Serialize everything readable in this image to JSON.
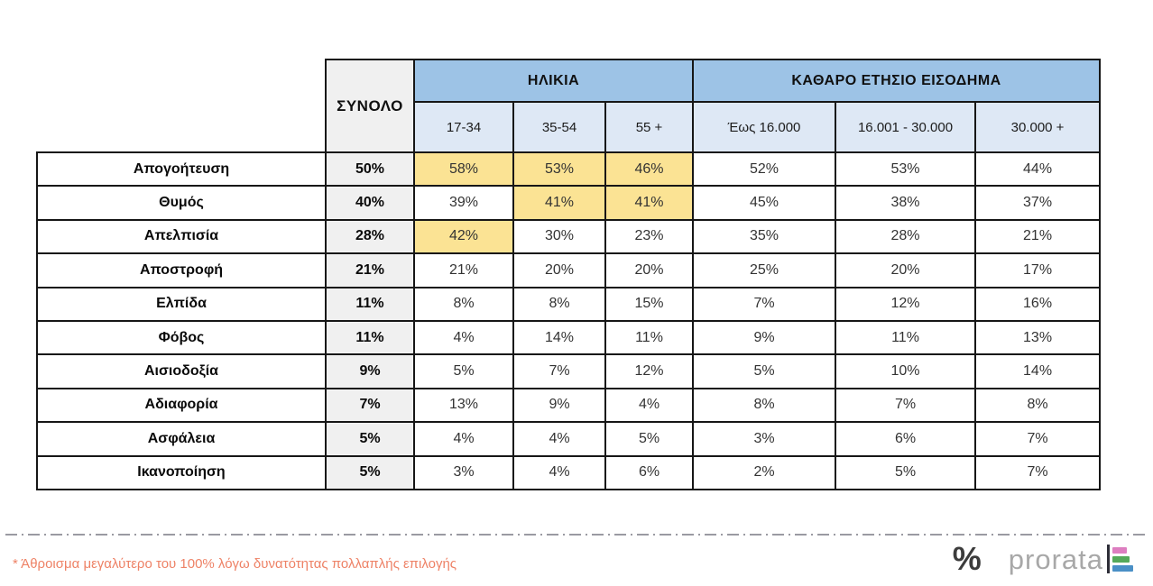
{
  "colors": {
    "header_blue": "#9DC3E6",
    "subheader_blue": "#DEE8F5",
    "total_bg": "#F0F0F0",
    "highlight": "#FBE394",
    "border": "#161616",
    "footnote": "#EE8266",
    "dash": "#9A9AA2",
    "edge_bar": "#1C1C1C",
    "logo_pink": "#DD7EC0",
    "logo_green": "#55A95A",
    "logo_blue": "#4A90C6",
    "logo_text": "#A8A8A8",
    "logo_dark": "#3C3C3C"
  },
  "table": {
    "total_header": "ΣΥΝΟΛΟ",
    "group_headers": [
      {
        "label": "ΗΛΙΚΙΑ",
        "columns": [
          "17-34",
          "35-54",
          "55 +"
        ]
      },
      {
        "label": "ΚΑΘΑΡΟ ΕΤΗΣΙΟ ΕΙΣΟΔΗΜΑ",
        "columns": [
          "Έως 16.000",
          "16.001 - 30.000",
          "30.000 +"
        ]
      }
    ],
    "rows": [
      {
        "label": "Απογοήτευση",
        "total": "50%",
        "values": [
          "58%",
          "53%",
          "46%",
          "52%",
          "53%",
          "44%"
        ],
        "highlights": [
          0,
          1,
          2
        ]
      },
      {
        "label": "Θυμός",
        "total": "40%",
        "values": [
          "39%",
          "41%",
          "41%",
          "45%",
          "38%",
          "37%"
        ],
        "highlights": [
          1,
          2
        ]
      },
      {
        "label": "Απελπισία",
        "total": "28%",
        "values": [
          "42%",
          "30%",
          "23%",
          "35%",
          "28%",
          "21%"
        ],
        "highlights": [
          0
        ]
      },
      {
        "label": "Αποστροφή",
        "total": "21%",
        "values": [
          "21%",
          "20%",
          "20%",
          "25%",
          "20%",
          "17%"
        ],
        "highlights": []
      },
      {
        "label": "Ελπίδα",
        "total": "11%",
        "values": [
          "8%",
          "8%",
          "15%",
          "7%",
          "12%",
          "16%"
        ],
        "highlights": []
      },
      {
        "label": "Φόβος",
        "total": "11%",
        "values": [
          "4%",
          "14%",
          "11%",
          "9%",
          "11%",
          "13%"
        ],
        "highlights": []
      },
      {
        "label": "Αισιοδοξία",
        "total": "9%",
        "values": [
          "5%",
          "7%",
          "12%",
          "5%",
          "10%",
          "14%"
        ],
        "highlights": []
      },
      {
        "label": "Αδιαφορία",
        "total": "7%",
        "values": [
          "13%",
          "9%",
          "4%",
          "8%",
          "7%",
          "8%"
        ],
        "highlights": []
      },
      {
        "label": "Ασφάλεια",
        "total": "5%",
        "values": [
          "4%",
          "4%",
          "5%",
          "3%",
          "6%",
          "7%"
        ],
        "highlights": []
      },
      {
        "label": "Ικανοποίηση",
        "total": "5%",
        "values": [
          "3%",
          "4%",
          "6%",
          "2%",
          "5%",
          "7%"
        ],
        "highlights": []
      }
    ]
  },
  "footnote": {
    "text": "* Άθροισμα μεγαλύτερο του 100% λόγω δυνατότητας πολλαπλής επιλογής"
  },
  "logo": {
    "percent": "%",
    "name": "prorata"
  },
  "chart_data": {
    "type": "table",
    "title": "",
    "columns": [
      "ΣΥΝΟΛΟ",
      "17-34",
      "35-54",
      "55 +",
      "Έως 16.000",
      "16.001 - 30.000",
      "30.000 +"
    ],
    "column_groups": [
      {
        "label": "ΗΛΙΚΙΑ",
        "span": [
          "17-34",
          "35-54",
          "55 +"
        ]
      },
      {
        "label": "ΚΑΘΑΡΟ ΕΤΗΣΙΟ ΕΙΣΟΔΗΜΑ",
        "span": [
          "Έως 16.000",
          "16.001 - 30.000",
          "30.000 +"
        ]
      }
    ],
    "rows": [
      {
        "label": "Απογοήτευση",
        "values_pct": [
          50,
          58,
          53,
          46,
          52,
          53,
          44
        ],
        "highlighted_columns": [
          "17-34",
          "35-54",
          "55 +"
        ]
      },
      {
        "label": "Θυμός",
        "values_pct": [
          40,
          39,
          41,
          41,
          45,
          38,
          37
        ],
        "highlighted_columns": [
          "35-54",
          "55 +"
        ]
      },
      {
        "label": "Απελπισία",
        "values_pct": [
          28,
          42,
          30,
          23,
          35,
          28,
          21
        ],
        "highlighted_columns": [
          "17-34"
        ]
      },
      {
        "label": "Αποστροφή",
        "values_pct": [
          21,
          21,
          20,
          20,
          25,
          20,
          17
        ],
        "highlighted_columns": []
      },
      {
        "label": "Ελπίδα",
        "values_pct": [
          11,
          8,
          8,
          15,
          7,
          12,
          16
        ],
        "highlighted_columns": []
      },
      {
        "label": "Φόβος",
        "values_pct": [
          11,
          4,
          14,
          11,
          9,
          11,
          13
        ],
        "highlighted_columns": []
      },
      {
        "label": "Αισιοδοξία",
        "values_pct": [
          9,
          5,
          7,
          12,
          5,
          10,
          14
        ],
        "highlighted_columns": []
      },
      {
        "label": "Αδιαφορία",
        "values_pct": [
          7,
          13,
          9,
          4,
          8,
          7,
          8
        ],
        "highlighted_columns": []
      },
      {
        "label": "Ασφάλεια",
        "values_pct": [
          5,
          4,
          4,
          5,
          3,
          6,
          7
        ],
        "highlighted_columns": []
      },
      {
        "label": "Ικανοποίηση",
        "values_pct": [
          5,
          3,
          4,
          6,
          2,
          5,
          7
        ],
        "highlighted_columns": []
      }
    ],
    "footnote": "* Άθροισμα μεγαλύτερο του 100% λόγω δυνατότητας πολλαπλής επιλογής"
  }
}
